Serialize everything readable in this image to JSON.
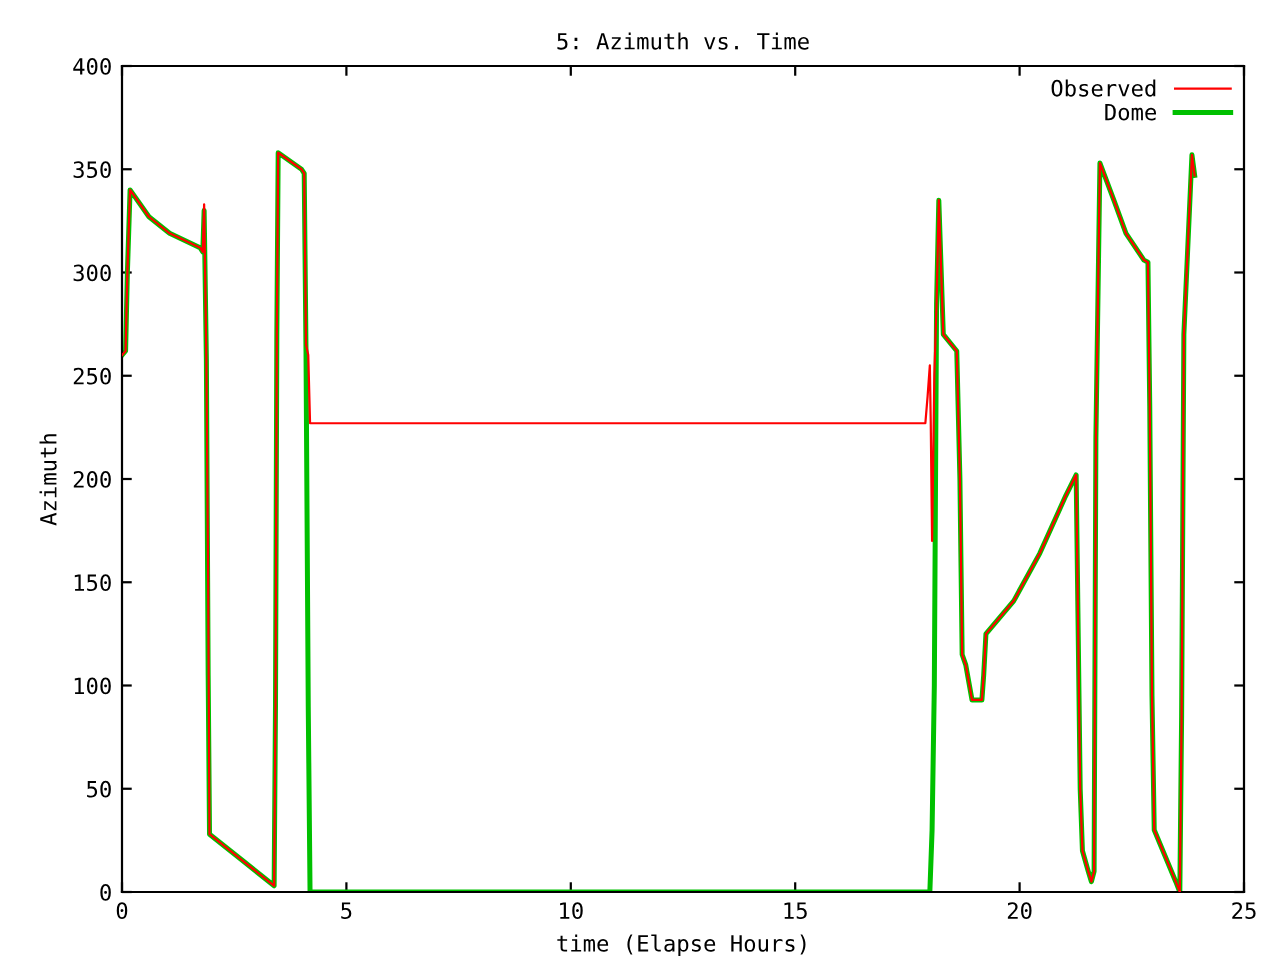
{
  "chart_data": {
    "type": "line",
    "title": "5: Azimuth vs. Time",
    "xlabel": "time (Elapse Hours)",
    "ylabel": "Azimuth",
    "xlim": [
      0,
      25
    ],
    "ylim": [
      0,
      400
    ],
    "xticks": [
      0,
      5,
      10,
      15,
      20,
      25
    ],
    "yticks": [
      0,
      50,
      100,
      150,
      200,
      250,
      300,
      350,
      400
    ],
    "grid": false,
    "legend": "top right",
    "marker": "none",
    "line_style": "solid",
    "series": [
      {
        "name": "Observed",
        "color": "#ff0000",
        "x": [
          0,
          0.08,
          0.12,
          0.18,
          0.6,
          1.06,
          1.74,
          1.8,
          1.83,
          1.88,
          1.92,
          1.95,
          2.7,
          3.39,
          3.42,
          3.45,
          3.48,
          4.0,
          4.06,
          4.1,
          4.15,
          4.19,
          17.9,
          17.95,
          18.0,
          18.02,
          18.05,
          18.1,
          18.15,
          18.2,
          18.3,
          18.6,
          18.67,
          18.72,
          18.8,
          18.94,
          19.16,
          19.2,
          19.25,
          19.87,
          20.45,
          21.03,
          21.26,
          21.3,
          21.35,
          21.4,
          21.53,
          21.6,
          21.66,
          21.7,
          21.79,
          22.1,
          22.37,
          22.77,
          22.86,
          22.9,
          22.95,
          23.0,
          23.48,
          23.57,
          23.61,
          23.66,
          23.84,
          23.9
        ],
        "values": [
          260,
          262,
          300,
          340,
          327,
          319,
          312,
          310,
          333,
          258,
          150,
          28,
          15,
          3,
          90,
          270,
          358,
          350,
          348,
          265,
          260,
          227,
          227,
          240,
          255,
          228,
          170,
          250,
          285,
          335,
          270,
          262,
          200,
          115,
          110,
          93,
          93,
          105,
          125,
          141,
          164,
          192,
          202,
          135,
          50,
          20,
          10,
          5,
          10,
          220,
          353,
          335,
          319,
          306,
          305,
          235,
          95,
          30,
          5,
          0,
          85,
          270,
          357,
          347
        ]
      },
      {
        "name": "Dome",
        "color": "#00c000",
        "x": [
          0,
          0.08,
          0.12,
          0.18,
          0.6,
          1.06,
          1.74,
          1.8,
          1.83,
          1.88,
          1.92,
          1.95,
          2.7,
          3.39,
          3.42,
          3.45,
          3.48,
          4.0,
          4.06,
          4.1,
          4.15,
          4.19,
          18.0,
          18.05,
          18.1,
          18.15,
          18.2,
          18.3,
          18.6,
          18.67,
          18.72,
          18.8,
          18.94,
          19.16,
          19.2,
          19.25,
          19.87,
          20.45,
          21.03,
          21.26,
          21.3,
          21.35,
          21.4,
          21.53,
          21.6,
          21.66,
          21.7,
          21.79,
          22.1,
          22.37,
          22.77,
          22.86,
          22.9,
          22.95,
          23.0,
          23.48,
          23.57,
          23.61,
          23.66,
          23.84,
          23.9
        ],
        "values": [
          260,
          262,
          300,
          340,
          327,
          319,
          312,
          310,
          330,
          258,
          105,
          28,
          15,
          3,
          90,
          270,
          358,
          350,
          348,
          262,
          90,
          0,
          0,
          30,
          100,
          285,
          335,
          270,
          262,
          200,
          115,
          110,
          93,
          93,
          105,
          125,
          141,
          164,
          192,
          202,
          135,
          50,
          20,
          10,
          5,
          10,
          220,
          353,
          335,
          319,
          306,
          305,
          235,
          95,
          30,
          5,
          0,
          85,
          270,
          357,
          347
        ]
      }
    ]
  }
}
